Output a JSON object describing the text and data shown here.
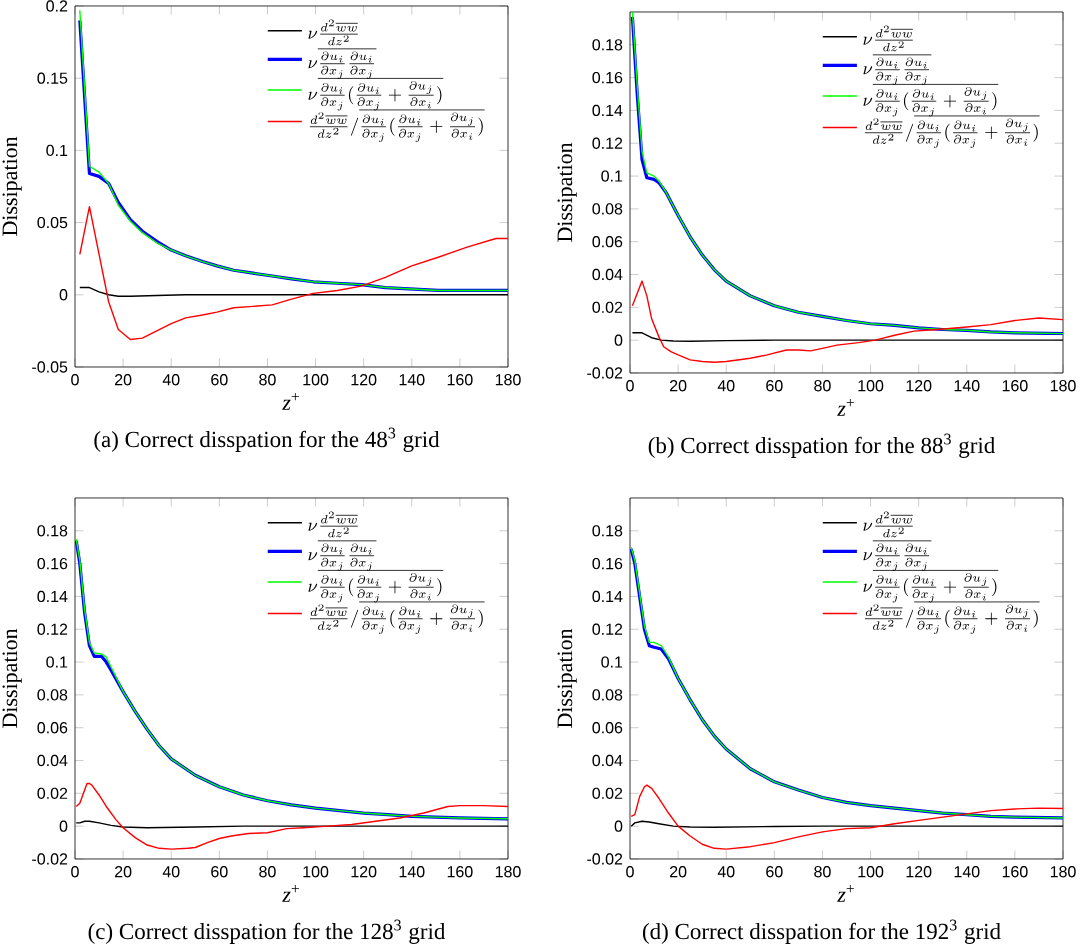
{
  "chart_data": [
    {
      "type": "line",
      "ylabel": "Dissipation",
      "xlabel": "*z*$^{+}$",
      "xlim": [
        0,
        180
      ],
      "ylim": [
        -0.05,
        0.2
      ],
      "xticks": [
        0,
        20,
        40,
        60,
        80,
        100,
        120,
        140,
        160,
        180
      ],
      "yticks": [
        -0.05,
        0,
        0.05,
        0.1,
        0.15,
        0.2
      ],
      "legend": "top right",
      "annotations": [
        "(a) Correct disspation for the 48$^{3}$ grid"
      ],
      "series": [
        {
          "name": "\\nu\\frac{d^2\\overline{ww}}{dz^2}",
          "color": "#000000",
          "x": [
            2,
            6,
            10,
            14,
            18,
            23,
            34,
            46,
            180
          ],
          "values": [
            0.005,
            0.005,
            0.002,
            0,
            -0.001,
            -0.001,
            -0.0005,
            0,
            0
          ]
        },
        {
          "name": "\\nu\\overline{\\frac{\\partial u_i}{\\partial x_j}\\frac{\\partial u_i}{\\partial x_j}}",
          "color": "#0000ff",
          "x": [
            2,
            6,
            10,
            14,
            18,
            23,
            28,
            34,
            40,
            46,
            53,
            59,
            66,
            74,
            82,
            90,
            99,
            109,
            119,
            129,
            140,
            151,
            163,
            180
          ],
          "values": [
            0.19,
            0.084,
            0.082,
            0.077,
            0.064,
            0.052,
            0.044,
            0.037,
            0.031,
            0.027,
            0.023,
            0.02,
            0.017,
            0.015,
            0.013,
            0.011,
            0.009,
            0.008,
            0.007,
            0.005,
            0.004,
            0.003,
            0.003,
            0.003
          ]
        },
        {
          "name": "\\nu\\overline{\\frac{\\partial u_i}{\\partial x_j}(\\frac{\\partial u_i}{\\partial x_j}+\\frac{\\partial u_j}{\\partial x_i})}",
          "color": "#00ff00",
          "x": [
            2,
            6,
            10,
            14,
            18,
            23,
            28,
            34,
            40,
            46,
            53,
            59,
            66,
            74,
            82,
            90,
            99,
            109,
            119,
            129,
            140,
            151,
            163,
            180
          ],
          "values": [
            0.197,
            0.089,
            0.085,
            0.077,
            0.062,
            0.051,
            0.043,
            0.036,
            0.031,
            0.027,
            0.023,
            0.02,
            0.017,
            0.015,
            0.013,
            0.011,
            0.009,
            0.008,
            0.007,
            0.005,
            0.004,
            0.003,
            0.003,
            0.003
          ]
        },
        {
          "name": "\\frac{d^2\\overline{ww}}{dz^2}/\\overline{\\frac{\\partial u_i}{\\partial x_j}(\\frac{\\partial u_i}{\\partial x_j}+\\frac{\\partial u_j}{\\partial x_i})}",
          "color": "#ff0000",
          "x": [
            2,
            6,
            10,
            14,
            18,
            23,
            28,
            34,
            40,
            46,
            53,
            59,
            66,
            74,
            82,
            90,
            99,
            109,
            119,
            129,
            140,
            151,
            163,
            175,
            180
          ],
          "values": [
            0.028,
            0.061,
            0.028,
            -0.005,
            -0.024,
            -0.031,
            -0.03,
            -0.025,
            -0.02,
            -0.016,
            -0.014,
            -0.012,
            -0.009,
            -0.008,
            -0.007,
            -0.003,
            0.001,
            0.003,
            0.006,
            0.012,
            0.02,
            0.026,
            0.033,
            0.039,
            0.039
          ]
        }
      ]
    },
    {
      "type": "line",
      "ylabel": "Dissipation",
      "xlabel": "*z*$^{+}$",
      "xlim": [
        0,
        180
      ],
      "ylim": [
        -0.02,
        0.2
      ],
      "xticks": [
        0,
        20,
        40,
        60,
        80,
        100,
        120,
        140,
        160,
        180
      ],
      "yticks": [
        -0.02,
        0,
        0.02,
        0.04,
        0.06,
        0.08,
        0.1,
        0.12,
        0.14,
        0.16,
        0.18
      ],
      "legend": "top right",
      "annotations": [
        "(b) Correct disspation for the 88$^{3}$ grid"
      ],
      "series": [
        {
          "name": "\\nu\\frac{d^2\\overline{ww}}{dz^2}",
          "color": "#000000",
          "x": [
            1,
            5,
            9,
            13,
            18,
            25,
            40,
            60,
            180
          ],
          "values": [
            0.0045,
            0.0045,
            0.0015,
            0,
            -0.0005,
            -0.0007,
            -0.0003,
            0,
            0
          ]
        },
        {
          "name": "\\nu\\overline{\\frac{\\partial u_i}{\\partial x_j}\\frac{\\partial u_i}{\\partial x_j}}",
          "color": "#0000ff",
          "x": [
            1,
            3,
            5,
            7,
            10,
            12,
            15,
            20,
            25,
            30,
            35,
            40,
            50,
            60,
            70,
            80,
            90,
            100,
            110,
            120,
            130,
            140,
            150,
            160,
            180
          ],
          "values": [
            0.197,
            0.15,
            0.11,
            0.099,
            0.098,
            0.096,
            0.09,
            0.076,
            0.063,
            0.052,
            0.043,
            0.036,
            0.027,
            0.021,
            0.017,
            0.0145,
            0.012,
            0.01,
            0.009,
            0.0075,
            0.0065,
            0.006,
            0.005,
            0.0045,
            0.004
          ]
        },
        {
          "name": "\\nu\\overline{\\frac{\\partial u_i}{\\partial x_j}(\\frac{\\partial u_i}{\\partial x_j}+\\frac{\\partial u_j}{\\partial x_i})}",
          "color": "#00ff00",
          "x": [
            1,
            3,
            5,
            7,
            10,
            12,
            15,
            20,
            25,
            30,
            35,
            40,
            50,
            60,
            70,
            80,
            90,
            100,
            110,
            120,
            130,
            140,
            150,
            160,
            180
          ],
          "values": [
            0.2,
            0.155,
            0.115,
            0.102,
            0.1,
            0.097,
            0.09,
            0.076,
            0.063,
            0.052,
            0.043,
            0.036,
            0.027,
            0.021,
            0.017,
            0.0145,
            0.012,
            0.01,
            0.009,
            0.0075,
            0.0065,
            0.006,
            0.005,
            0.0045,
            0.004
          ]
        },
        {
          "name": "\\frac{d^2\\overline{ww}}{dz^2}/\\overline{\\frac{\\partial u_i}{\\partial x_j}(\\frac{\\partial u_i}{\\partial x_j}+\\frac{\\partial u_j}{\\partial x_i})}",
          "color": "#ff0000",
          "x": [
            1,
            5,
            7,
            9,
            12,
            14,
            17,
            20,
            25,
            30,
            35,
            40,
            50,
            57,
            65,
            70,
            75,
            80,
            86,
            95,
            102,
            110,
            118,
            128,
            140,
            150,
            160,
            170,
            180
          ],
          "values": [
            0.021,
            0.036,
            0.027,
            0.013,
            0.002,
            -0.004,
            -0.007,
            -0.009,
            -0.012,
            -0.013,
            -0.0135,
            -0.013,
            -0.011,
            -0.009,
            -0.006,
            -0.006,
            -0.0065,
            -0.005,
            -0.003,
            -0.0015,
            0,
            0.003,
            0.0055,
            0.0065,
            0.008,
            0.0095,
            0.012,
            0.0135,
            0.0125
          ]
        }
      ]
    },
    {
      "type": "line",
      "ylabel": "Dissipation",
      "xlabel": "*z*$^{+}$",
      "xlim": [
        0,
        180
      ],
      "ylim": [
        -0.02,
        0.2
      ],
      "xticks": [
        0,
        20,
        40,
        60,
        80,
        100,
        120,
        140,
        160,
        180
      ],
      "yticks": [
        -0.02,
        0,
        0.02,
        0.04,
        0.06,
        0.08,
        0.1,
        0.12,
        0.14,
        0.16,
        0.18
      ],
      "legend": "top right",
      "annotations": [
        "(c) Correct disspation for the 128$^{3}$ grid"
      ],
      "series": [
        {
          "name": "\\nu\\frac{d^2\\overline{ww}}{dz^2}",
          "color": "#000000",
          "x": [
            0.5,
            2,
            4,
            6,
            10,
            15,
            20,
            30,
            50,
            70,
            180
          ],
          "values": [
            0.002,
            0.002,
            0.003,
            0.003,
            0.002,
            0.0005,
            -0.0005,
            -0.001,
            -0.0005,
            0,
            0
          ]
        },
        {
          "name": "\\nu\\overline{\\frac{\\partial u_i}{\\partial x_j}\\frac{\\partial u_i}{\\partial x_j}}",
          "color": "#0000ff",
          "x": [
            0.5,
            2,
            4,
            6,
            8,
            11,
            13,
            15,
            20,
            25,
            30,
            35,
            40,
            50,
            60,
            70,
            80,
            90,
            100,
            110,
            120,
            130,
            140,
            150,
            160,
            180
          ],
          "values": [
            0.174,
            0.16,
            0.13,
            0.11,
            0.1035,
            0.1035,
            0.1,
            0.095,
            0.082,
            0.07,
            0.059,
            0.049,
            0.041,
            0.031,
            0.024,
            0.019,
            0.0155,
            0.013,
            0.011,
            0.0095,
            0.008,
            0.007,
            0.006,
            0.0055,
            0.005,
            0.0045
          ]
        },
        {
          "name": "\\nu\\overline{\\frac{\\partial u_i}{\\partial x_j}(\\frac{\\partial u_i}{\\partial x_j}+\\frac{\\partial u_j}{\\partial x_i})}",
          "color": "#00ff00",
          "x": [
            0.5,
            2,
            4,
            6,
            8,
            11,
            13,
            15,
            20,
            25,
            30,
            35,
            40,
            50,
            60,
            70,
            80,
            90,
            100,
            110,
            120,
            130,
            140,
            150,
            160,
            180
          ],
          "values": [
            0.175,
            0.162,
            0.132,
            0.112,
            0.1055,
            0.105,
            0.103,
            0.097,
            0.082,
            0.07,
            0.059,
            0.049,
            0.041,
            0.031,
            0.024,
            0.019,
            0.0155,
            0.013,
            0.011,
            0.0095,
            0.008,
            0.007,
            0.006,
            0.0055,
            0.005,
            0.0045
          ]
        },
        {
          "name": "\\frac{d^2\\overline{ww}}{dz^2}/\\overline{\\frac{\\partial u_i}{\\partial x_j}(\\frac{\\partial u_i}{\\partial x_j}+\\frac{\\partial u_j}{\\partial x_i})}",
          "color": "#ff0000",
          "x": [
            0.5,
            2,
            4,
            5,
            6,
            7,
            10,
            13,
            17,
            20,
            25,
            30,
            35,
            40,
            47,
            50,
            55,
            60,
            65,
            72,
            80,
            88,
            95,
            105,
            115,
            125,
            135,
            145,
            155,
            160,
            170,
            180
          ],
          "values": [
            0.012,
            0.014,
            0.022,
            0.026,
            0.026,
            0.025,
            0.019,
            0.012,
            0.004,
            -0.001,
            -0.007,
            -0.0115,
            -0.0135,
            -0.014,
            -0.0135,
            -0.013,
            -0.01,
            -0.0075,
            -0.006,
            -0.0045,
            -0.004,
            -0.0015,
            -0.001,
            0,
            0.001,
            0.003,
            0.005,
            0.008,
            0.012,
            0.0125,
            0.0125,
            0.012
          ]
        }
      ]
    },
    {
      "type": "line",
      "ylabel": "Dissipation",
      "xlabel": "*z*$^{+}$",
      "xlim": [
        0,
        180
      ],
      "ylim": [
        -0.02,
        0.2
      ],
      "xticks": [
        0,
        20,
        40,
        60,
        80,
        100,
        120,
        140,
        160,
        180
      ],
      "yticks": [
        -0.02,
        0,
        0.02,
        0.04,
        0.06,
        0.08,
        0.1,
        0.12,
        0.14,
        0.16,
        0.18
      ],
      "legend": "top right",
      "annotations": [
        "(d) Correct disspation for the 192$^{3}$ grid"
      ],
      "series": [
        {
          "name": "\\nu\\frac{d^2\\overline{ww}}{dz^2}",
          "color": "#000000",
          "x": [
            0.5,
            2,
            5,
            8,
            12,
            18,
            25,
            35,
            60,
            80,
            180
          ],
          "values": [
            0,
            0.002,
            0.003,
            0.0025,
            0.0015,
            0,
            -0.0005,
            -0.0007,
            -0.0002,
            0,
            0
          ]
        },
        {
          "name": "\\nu\\overline{\\frac{\\partial u_i}{\\partial x_j}\\frac{\\partial u_i}{\\partial x_j}}",
          "color": "#0000ff",
          "x": [
            0.5,
            2,
            4,
            6,
            8,
            10,
            13,
            16,
            20,
            25,
            30,
            35,
            40,
            50,
            60,
            70,
            80,
            90,
            100,
            110,
            120,
            130,
            140,
            150,
            160,
            180
          ],
          "values": [
            0.169,
            0.16,
            0.14,
            0.12,
            0.11,
            0.109,
            0.108,
            0.102,
            0.09,
            0.077,
            0.065,
            0.055,
            0.047,
            0.035,
            0.027,
            0.022,
            0.0175,
            0.0145,
            0.0125,
            0.011,
            0.0095,
            0.008,
            0.007,
            0.006,
            0.0055,
            0.005
          ]
        },
        {
          "name": "\\nu\\overline{\\frac{\\partial u_i}{\\partial x_j}(\\frac{\\partial u_i}{\\partial x_j}+\\frac{\\partial u_j}{\\partial x_i})}",
          "color": "#00ff00",
          "x": [
            0.5,
            2,
            4,
            6,
            8,
            10,
            13,
            16,
            20,
            25,
            30,
            35,
            40,
            50,
            60,
            70,
            80,
            90,
            100,
            110,
            120,
            130,
            140,
            150,
            160,
            180
          ],
          "values": [
            0.17,
            0.162,
            0.142,
            0.122,
            0.112,
            0.112,
            0.11,
            0.103,
            0.09,
            0.077,
            0.065,
            0.055,
            0.047,
            0.035,
            0.027,
            0.022,
            0.0175,
            0.0145,
            0.0125,
            0.011,
            0.0095,
            0.008,
            0.007,
            0.006,
            0.0055,
            0.005
          ]
        },
        {
          "name": "\\frac{d^2\\overline{ww}}{dz^2}/\\overline{\\frac{\\partial u_i}{\\partial x_j}(\\frac{\\partial u_i}{\\partial x_j}+\\frac{\\partial u_j}{\\partial x_i})}",
          "color": "#ff0000",
          "x": [
            0.5,
            2,
            4,
            6,
            7,
            9,
            12,
            16,
            20,
            25,
            30,
            35,
            40,
            50,
            60,
            70,
            80,
            90,
            100,
            110,
            120,
            130,
            140,
            150,
            160,
            170,
            180
          ],
          "values": [
            0.006,
            0.007,
            0.018,
            0.024,
            0.025,
            0.023,
            0.017,
            0.008,
            0,
            -0.006,
            -0.011,
            -0.0135,
            -0.014,
            -0.0125,
            -0.01,
            -0.0065,
            -0.0035,
            -0.0015,
            -0.001,
            0.0015,
            0.0035,
            0.0055,
            0.0075,
            0.0095,
            0.0105,
            0.011,
            0.0108
          ]
        }
      ]
    }
  ]
}
